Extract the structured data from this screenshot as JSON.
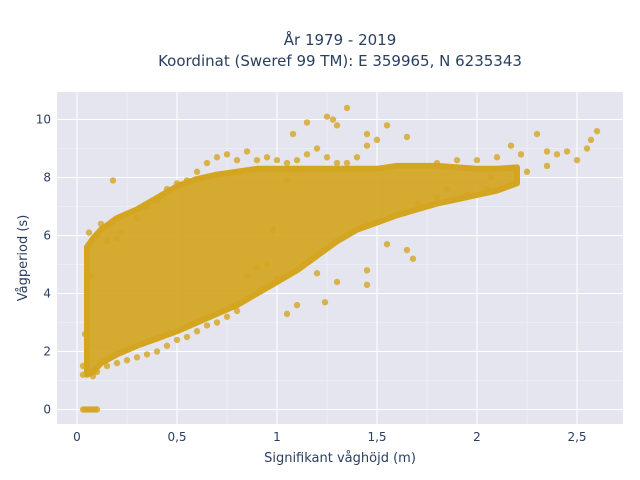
{
  "chart_data": {
    "type": "scatter",
    "title_line1": "År 1979 - 2019",
    "title_line2": "Koordinat (Sweref 99 TM): E 359965, N 6235343",
    "xlabel": "Signifikant våghöjd (m)",
    "ylabel": "Vågperiod (s)",
    "xlim": [
      -0.1,
      2.73
    ],
    "ylim": [
      -0.5,
      10.95
    ],
    "x_ticks": [
      0,
      0.5,
      1,
      1.5,
      2,
      2.5
    ],
    "x_tick_labels": [
      "0",
      "0,5",
      "1",
      "1,5",
      "2",
      "2,5"
    ],
    "y_ticks": [
      0,
      2,
      4,
      6,
      8,
      10
    ],
    "y_tick_labels": [
      "0",
      "2",
      "4",
      "6",
      "8",
      "10"
    ],
    "grid": true,
    "marker_color": "#D4A520",
    "background_color": "#E5E5F0",
    "grid_color": "#FFFFFF",
    "points": [
      [
        0.03,
        0.0
      ],
      [
        0.04,
        0.0
      ],
      [
        0.05,
        0.0
      ],
      [
        0.06,
        0.0
      ],
      [
        0.07,
        0.0
      ],
      [
        0.08,
        0.0
      ],
      [
        0.09,
        0.0
      ],
      [
        0.1,
        0.0
      ],
      [
        0.03,
        1.2
      ],
      [
        0.03,
        1.5
      ],
      [
        0.04,
        2.6
      ],
      [
        0.05,
        4.0
      ],
      [
        0.05,
        5.4
      ],
      [
        0.06,
        6.1
      ],
      [
        0.07,
        4.6
      ],
      [
        0.1,
        6.0
      ],
      [
        0.12,
        6.4
      ],
      [
        0.15,
        5.8
      ],
      [
        0.18,
        7.9
      ],
      [
        0.2,
        5.9
      ],
      [
        0.22,
        6.1
      ],
      [
        0.3,
        6.6
      ],
      [
        0.35,
        7.0
      ],
      [
        0.4,
        7.2
      ],
      [
        0.45,
        7.6
      ],
      [
        0.5,
        7.8
      ],
      [
        0.55,
        7.9
      ],
      [
        0.6,
        8.2
      ],
      [
        0.65,
        8.5
      ],
      [
        0.7,
        8.7
      ],
      [
        0.75,
        8.8
      ],
      [
        0.8,
        8.6
      ],
      [
        0.85,
        8.9
      ],
      [
        0.9,
        8.6
      ],
      [
        0.95,
        8.7
      ],
      [
        1.0,
        8.6
      ],
      [
        1.05,
        8.5
      ],
      [
        1.1,
        8.6
      ],
      [
        1.15,
        8.8
      ],
      [
        1.2,
        9.0
      ],
      [
        1.25,
        8.7
      ],
      [
        1.3,
        8.5
      ],
      [
        1.35,
        8.5
      ],
      [
        1.4,
        8.7
      ],
      [
        1.45,
        9.1
      ],
      [
        1.08,
        9.5
      ],
      [
        1.15,
        9.9
      ],
      [
        1.25,
        10.1
      ],
      [
        1.28,
        10.0
      ],
      [
        1.3,
        9.8
      ],
      [
        1.35,
        10.4
      ],
      [
        1.45,
        9.5
      ],
      [
        1.5,
        9.3
      ],
      [
        1.55,
        9.8
      ],
      [
        1.65,
        9.4
      ],
      [
        1.8,
        8.5
      ],
      [
        1.9,
        8.6
      ],
      [
        2.0,
        8.6
      ],
      [
        2.1,
        8.7
      ],
      [
        2.17,
        9.1
      ],
      [
        2.22,
        8.8
      ],
      [
        2.3,
        9.5
      ],
      [
        2.35,
        8.9
      ],
      [
        2.4,
        8.8
      ],
      [
        2.45,
        8.9
      ],
      [
        2.5,
        8.6
      ],
      [
        2.55,
        9.0
      ],
      [
        2.6,
        9.6
      ],
      [
        2.57,
        9.3
      ],
      [
        2.25,
        8.2
      ],
      [
        2.2,
        8.0
      ],
      [
        2.05,
        7.6
      ],
      [
        2.07,
        8.0
      ],
      [
        1.95,
        7.4
      ],
      [
        1.7,
        7.1
      ],
      [
        1.65,
        5.5
      ],
      [
        1.68,
        5.2
      ],
      [
        1.45,
        4.3
      ],
      [
        1.3,
        4.4
      ],
      [
        1.2,
        4.7
      ],
      [
        1.24,
        3.7
      ],
      [
        1.1,
        3.6
      ],
      [
        1.05,
        3.3
      ],
      [
        1.0,
        4.5
      ],
      [
        0.95,
        5.0
      ],
      [
        0.9,
        4.9
      ],
      [
        0.85,
        4.6
      ],
      [
        0.8,
        3.4
      ],
      [
        0.75,
        3.2
      ],
      [
        0.7,
        3.0
      ],
      [
        0.65,
        2.9
      ],
      [
        0.6,
        2.7
      ],
      [
        0.55,
        2.5
      ],
      [
        0.5,
        2.4
      ],
      [
        0.45,
        2.2
      ],
      [
        0.4,
        2.0
      ],
      [
        0.35,
        1.9
      ],
      [
        0.3,
        1.8
      ],
      [
        0.25,
        1.7
      ],
      [
        0.2,
        1.6
      ],
      [
        0.15,
        1.5
      ],
      [
        0.1,
        1.3
      ],
      [
        0.08,
        1.15
      ],
      [
        1.55,
        5.7
      ],
      [
        1.45,
        4.8
      ],
      [
        1.1,
        8.3
      ],
      [
        1.05,
        7.9
      ],
      [
        0.98,
        6.2
      ],
      [
        1.8,
        7.3
      ],
      [
        1.85,
        7.6
      ],
      [
        2.35,
        8.4
      ]
    ]
  }
}
